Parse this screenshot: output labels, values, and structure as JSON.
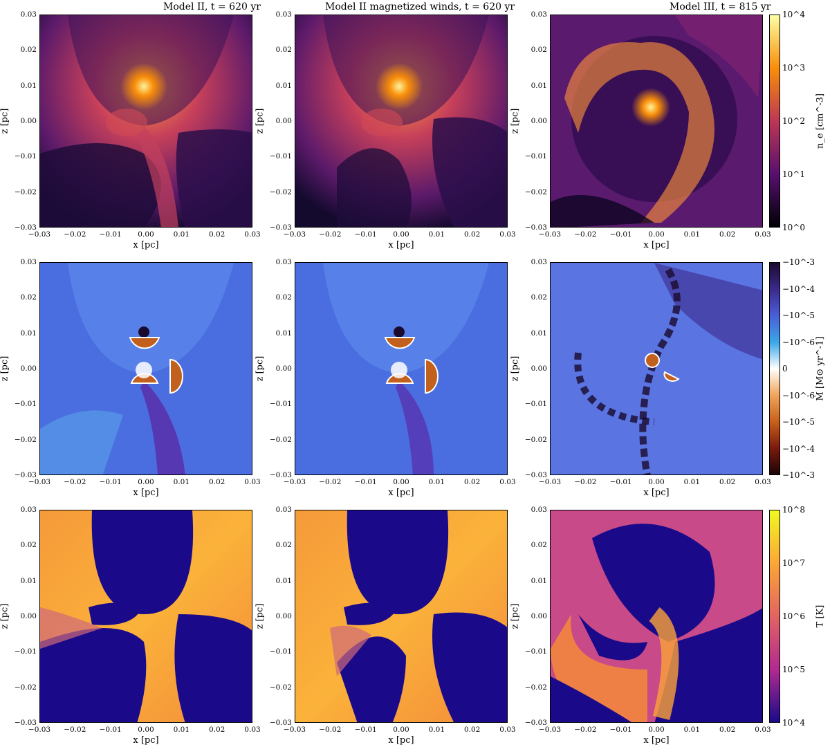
{
  "titles": {
    "col1": "Model II, t = 620 yr",
    "col2": "Model II magnetized winds, t = 620 yr",
    "col3": "Model III, t = 815 yr"
  },
  "axes": {
    "xlabel": "x [pc]",
    "ylabel": "z [pc]",
    "xticks": [
      "−0.03",
      "−0.02",
      "−0.01",
      "0.00",
      "0.01",
      "0.02",
      "0.03"
    ],
    "yticks": [
      "0.03",
      "0.02",
      "0.01",
      "0.00",
      "−0.01",
      "−0.02",
      "−0.03"
    ]
  },
  "colorbars": {
    "density": {
      "label": "n_e [cm^-3]",
      "ticks": [
        "10^4",
        "10^3",
        "10^2",
        "10^1",
        "10^0"
      ],
      "colors": [
        "#fcffa4",
        "#f98e09",
        "#bc3754",
        "#57106e",
        "#000004"
      ]
    },
    "mdot": {
      "label": "Ṁ [M⊙ yr^-1]",
      "ticks": [
        "−10^-3",
        "−10^-4",
        "−10^-5",
        "−10^-6",
        "0",
        "−10^-6",
        "−10^-5",
        "−10^-4",
        "−10^-3"
      ],
      "colors": [
        "#1a0a2e",
        "#3b2a8c",
        "#4a5fd6",
        "#3aa6e8",
        "#ffffff",
        "#f0a55a",
        "#c8601a",
        "#7a1a0e",
        "#1a0505"
      ]
    },
    "temperature": {
      "label": "T [K]",
      "ticks": [
        "10^8",
        "10^7",
        "10^6",
        "10^5",
        "10^4"
      ],
      "colors": [
        "#f0f921",
        "#fca636",
        "#e16462",
        "#b12a90",
        "#1a0a8a"
      ]
    }
  }
}
